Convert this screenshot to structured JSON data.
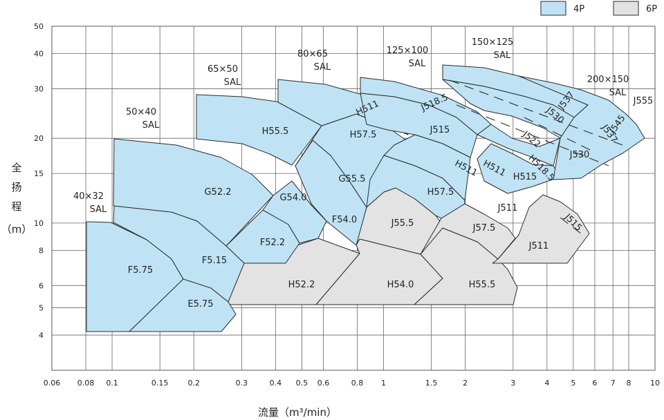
{
  "chart_data": {
    "type": "area",
    "title": "",
    "xlabel": "流量（m³/min）",
    "ylabel": [
      "全",
      "扬",
      "程",
      "（m）"
    ],
    "xscale": "log",
    "yscale": "log",
    "xlim": [
      0.06,
      10
    ],
    "ylim": [
      3,
      50
    ],
    "x_ticks": [
      "0.06",
      "0.08",
      "0.1",
      "0.15",
      "0.2",
      "0.3",
      "0.4",
      "0.5",
      "0.6",
      "0.8",
      "1",
      "1.5",
      "2",
      "3",
      "4",
      "5",
      "6",
      "7",
      "8",
      "10"
    ],
    "y_ticks": [
      "4",
      "5",
      "6",
      "8",
      "10",
      "15",
      "20",
      "30",
      "40",
      "50"
    ],
    "legend": [
      {
        "name": "4P",
        "color": "#bfe3f4"
      },
      {
        "name": "6P",
        "color": "#e3e3e3"
      }
    ],
    "legend_position": "top-right",
    "grid": true,
    "pump_groups": [
      {
        "label": [
          "40×32",
          "SAL"
        ]
      },
      {
        "label": [
          "50×40",
          "SAL"
        ]
      },
      {
        "label": [
          "65×50",
          "SAL"
        ]
      },
      {
        "label": [
          "80×65",
          "SAL"
        ]
      },
      {
        "label": [
          "125×100",
          "SAL"
        ]
      },
      {
        "label": [
          "150×125",
          "SAL"
        ]
      },
      {
        "label": [
          "200×150",
          "SAL"
        ]
      }
    ],
    "model_labels_4P": [
      "F5.75",
      "E5.75",
      "F5.15",
      "G52.2",
      "F52.2",
      "G54.0",
      "H55.5",
      "F54.0",
      "G55.5",
      "H57.5",
      "H511",
      "J518.5",
      "J515",
      "H511",
      "H57.5",
      "J537",
      "J530",
      "J522",
      "H518.5",
      "H511",
      "H515",
      "J537",
      "J545",
      "J530",
      "J555"
    ],
    "model_labels_6P": [
      "H52.2",
      "H54.0",
      "H55.5",
      "J55.5",
      "J511",
      "J57.5",
      "J511",
      "J515"
    ]
  }
}
